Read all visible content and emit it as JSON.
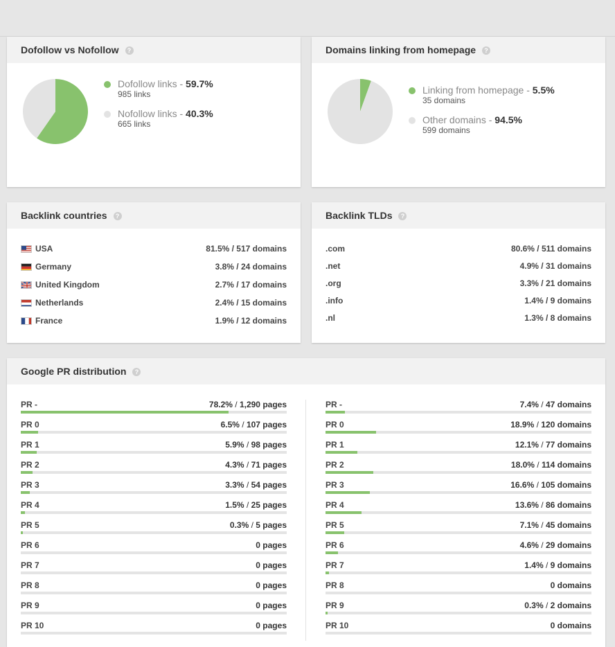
{
  "colors": {
    "green": "#88c26d",
    "grey": "#e3e3e3"
  },
  "dofollow": {
    "title": "Dofollow vs Nofollow",
    "help": "?",
    "chart_data": {
      "type": "pie",
      "slices": [
        {
          "label": "Dofollow links",
          "value": 59.7,
          "pct": "59.7%",
          "sub": "985 links",
          "color": "#88c26d"
        },
        {
          "label": "Nofollow links",
          "value": 40.3,
          "pct": "40.3%",
          "sub": "665 links",
          "color": "#e3e3e3"
        }
      ]
    }
  },
  "homepage": {
    "title": "Domains linking from homepage",
    "help": "?",
    "chart_data": {
      "type": "pie",
      "slices": [
        {
          "label": "Linking from homepage",
          "value": 5.5,
          "pct": "5.5%",
          "sub": "35 domains",
          "color": "#88c26d"
        },
        {
          "label": "Other domains",
          "value": 94.5,
          "pct": "94.5%",
          "sub": "599 domains",
          "color": "#e3e3e3"
        }
      ]
    }
  },
  "countries": {
    "title": "Backlink countries",
    "help": "?",
    "rows": [
      {
        "flag": "flag-usa-icon",
        "name": "USA",
        "value": "81.5% / 517 domains"
      },
      {
        "flag": "flag-germany-icon",
        "name": "Germany",
        "value": "3.8% / 24 domains"
      },
      {
        "flag": "flag-uk-icon",
        "name": "United Kingdom",
        "value": "2.7% / 17 domains"
      },
      {
        "flag": "flag-netherlands-icon",
        "name": "Netherlands",
        "value": "2.4% / 15 domains"
      },
      {
        "flag": "flag-france-icon",
        "name": "France",
        "value": "1.9% / 12 domains"
      }
    ]
  },
  "tlds": {
    "title": "Backlink TLDs",
    "help": "?",
    "rows": [
      {
        "name": ".com",
        "value": "80.6% / 511 domains"
      },
      {
        "name": ".net",
        "value": "4.9% / 31 domains"
      },
      {
        "name": ".org",
        "value": "3.3% / 21 domains"
      },
      {
        "name": ".info",
        "value": "1.4% / 9 domains"
      },
      {
        "name": ".nl",
        "value": "1.3% / 8 domains"
      }
    ]
  },
  "pr": {
    "title": "Google PR distribution",
    "help": "?",
    "chart_data": [
      {
        "type": "bar",
        "series": [
          {
            "name": "pages",
            "values": [
              78.2,
              6.5,
              5.9,
              4.3,
              3.3,
              1.5,
              0.3,
              0,
              0,
              0,
              0,
              0
            ]
          }
        ],
        "categories": [
          "PR -",
          "PR 0",
          "PR 1",
          "PR 2",
          "PR 3",
          "PR 4",
          "PR 5",
          "PR 6",
          "PR 7",
          "PR 8",
          "PR 9",
          "PR 10"
        ],
        "pct_labels": [
          "78.2%",
          "6.5%",
          "5.9%",
          "4.3%",
          "3.3%",
          "1.5%",
          "0.3%",
          "",
          "",
          "",
          "",
          ""
        ],
        "count_labels": [
          "1,290 pages",
          "107 pages",
          "98 pages",
          "71 pages",
          "54 pages",
          "25 pages",
          "5 pages",
          "0 pages",
          "0 pages",
          "0 pages",
          "0 pages",
          "0 pages"
        ]
      },
      {
        "type": "bar",
        "series": [
          {
            "name": "domains",
            "values": [
              7.4,
              18.9,
              12.1,
              18.0,
              16.6,
              13.6,
              7.1,
              4.6,
              1.4,
              0,
              0.3,
              0
            ]
          }
        ],
        "categories": [
          "PR -",
          "PR 0",
          "PR 1",
          "PR 2",
          "PR 3",
          "PR 4",
          "PR 5",
          "PR 6",
          "PR 7",
          "PR 8",
          "PR 9",
          "PR 10"
        ],
        "pct_labels": [
          "7.4%",
          "18.9%",
          "12.1%",
          "18.0%",
          "16.6%",
          "13.6%",
          "7.1%",
          "4.6%",
          "1.4%",
          "",
          "0.3%",
          ""
        ],
        "count_labels": [
          "47 domains",
          "120 domains",
          "77 domains",
          "114 domains",
          "105 domains",
          "86 domains",
          "45 domains",
          "29 domains",
          "9 domains",
          "0 domains",
          "2 domains",
          "0 domains"
        ]
      }
    ]
  }
}
